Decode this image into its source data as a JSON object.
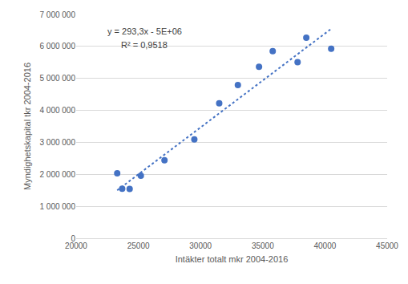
{
  "chart_data": {
    "type": "scatter",
    "x_label": "Intäkter totalt mkr 2004-2016",
    "y_label": "Myndighetskapital tkr 2004-2016",
    "annotations": [
      "y = 293,3x - 5E+06",
      "R² = 0,9518"
    ],
    "series": [
      {
        "type": "scatter",
        "color": "#4472c4",
        "marker": "circle",
        "x": [
          23300,
          23700,
          24300,
          25200,
          27100,
          29500,
          31500,
          33000,
          34700,
          35800,
          37800,
          38500,
          40500
        ],
        "values": [
          2030000,
          1550000,
          1540000,
          1960000,
          2440000,
          3090000,
          4220000,
          4790000,
          5360000,
          5850000,
          5510000,
          6270000,
          5930000
        ]
      },
      {
        "type": "line",
        "color": "#4472c4",
        "line_style": "dotted",
        "x": [
          23300,
          40500
        ],
        "values": [
          1500000,
          6550000
        ]
      }
    ],
    "xlim": [
      20000,
      45000
    ],
    "xticks": [
      20000,
      25000,
      30000,
      35000,
      40000,
      45000
    ],
    "ylim": [
      0,
      7000000
    ],
    "yticks": [
      0,
      {
        "value": 1000000,
        "label": "1 000 000"
      },
      {
        "value": 2000000,
        "label": "2 000 000"
      },
      {
        "value": 3000000,
        "label": "3 000 000"
      },
      {
        "value": 4000000,
        "label": "4 000 000"
      },
      {
        "value": 5000000,
        "label": "5 000 000"
      },
      {
        "value": 6000000,
        "label": "6 000 000"
      },
      {
        "value": 7000000,
        "label": "7 000 000"
      }
    ],
    "grid": true
  }
}
